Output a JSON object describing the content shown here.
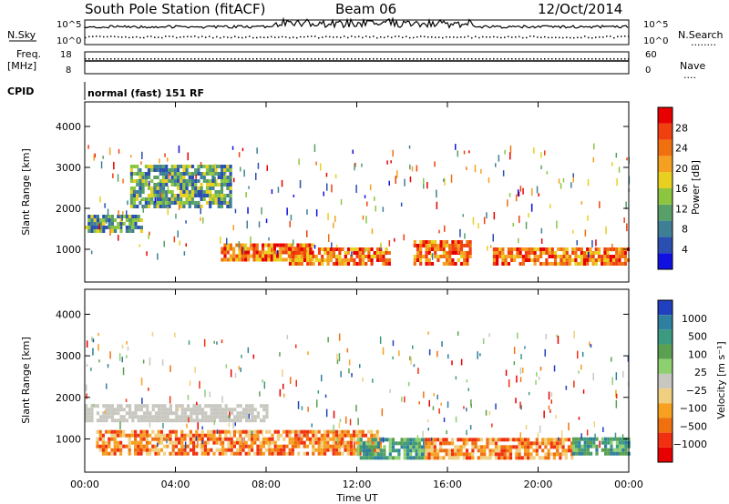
{
  "header": {
    "station": "South Pole Station (fitACF)",
    "beam": "Beam 06",
    "date": "12/Oct/2014"
  },
  "aux": {
    "nsky_label": "N.Sky",
    "nsearch_label": "N.Search",
    "nsearch_dots": "........",
    "noise_ticks_left": [
      "10^5",
      "10^0"
    ],
    "noise_ticks_right": [
      "10^5",
      "10^0"
    ],
    "freq_label_line1": "Freq.",
    "freq_label_line2": "[MHz]",
    "freq_ticks": [
      "18",
      "8"
    ],
    "nave_label": "Nave",
    "nave_dots": "....",
    "nave_ticks": [
      "60",
      "0"
    ],
    "cpid_label": "CPID",
    "cpid_value": "normal (fast) 151 RF"
  },
  "chart_data": [
    {
      "type": "heatmap",
      "panel": "power",
      "ylabel": "Slant Range [km]",
      "yticks": [
        "1000",
        "2000",
        "3000",
        "4000"
      ],
      "ylim": [
        200,
        4600
      ],
      "xlim": [
        0,
        24
      ],
      "colorbar": {
        "label": "Power [dB]",
        "ticks": [
          "4",
          "8",
          "12",
          "16",
          "20",
          "24",
          "28"
        ],
        "colors": [
          "#1010e0",
          "#2a4fb0",
          "#3f7f95",
          "#58a068",
          "#8cc640",
          "#e8d020",
          "#f5a020",
          "#f07010",
          "#f04010",
          "#e80000"
        ]
      },
      "echo_regions": [
        {
          "t0": 0.0,
          "t1": 2.5,
          "r0": 1400,
          "r1": 1800,
          "level": "moderate"
        },
        {
          "t0": 2.0,
          "t1": 6.5,
          "r0": 2000,
          "r1": 3000,
          "level": "moderate"
        },
        {
          "t0": 6.0,
          "t1": 10.0,
          "r0": 700,
          "r1": 1100,
          "level": "strong"
        },
        {
          "t0": 9.0,
          "t1": 13.5,
          "r0": 600,
          "r1": 1000,
          "level": "strong"
        },
        {
          "t0": 14.5,
          "t1": 17.0,
          "r0": 600,
          "r1": 1200,
          "level": "strong"
        },
        {
          "t0": 18.0,
          "t1": 24.0,
          "r0": 600,
          "r1": 1000,
          "level": "strong"
        }
      ]
    },
    {
      "type": "heatmap",
      "panel": "velocity",
      "ylabel": "Slant Range [km]",
      "yticks": [
        "1000",
        "2000",
        "3000",
        "4000"
      ],
      "ylim": [
        200,
        4600
      ],
      "xlim": [
        0,
        24
      ],
      "xlabel": "Time UT",
      "xticks": [
        "00:00",
        "04:00",
        "08:00",
        "12:00",
        "16:00",
        "20:00",
        "00:00"
      ],
      "colorbar": {
        "label": "Velocity [m s⁻¹]",
        "ticks": [
          "1000",
          "500",
          "100",
          "25",
          "−25",
          "−100",
          "−500",
          "−1000"
        ],
        "colors": [
          "#2040c0",
          "#2f7fa0",
          "#3c9a80",
          "#5aa050",
          "#8ed070",
          "#c8c8c0",
          "#f0d080",
          "#f8a020",
          "#f07010",
          "#f03010",
          "#e80000"
        ]
      },
      "echo_regions": [
        {
          "t0": 0.0,
          "t1": 8.0,
          "r0": 1400,
          "r1": 1800,
          "level": "ground"
        },
        {
          "t0": 0.5,
          "t1": 13.0,
          "r0": 600,
          "r1": 1200,
          "level": "negative"
        },
        {
          "t0": 12.0,
          "t1": 15.0,
          "r0": 500,
          "r1": 1000,
          "level": "positive"
        },
        {
          "t0": 15.0,
          "t1": 21.5,
          "r0": 500,
          "r1": 1000,
          "level": "negative"
        },
        {
          "t0": 21.5,
          "t1": 24.0,
          "r0": 600,
          "r1": 1000,
          "level": "positive"
        }
      ]
    }
  ]
}
